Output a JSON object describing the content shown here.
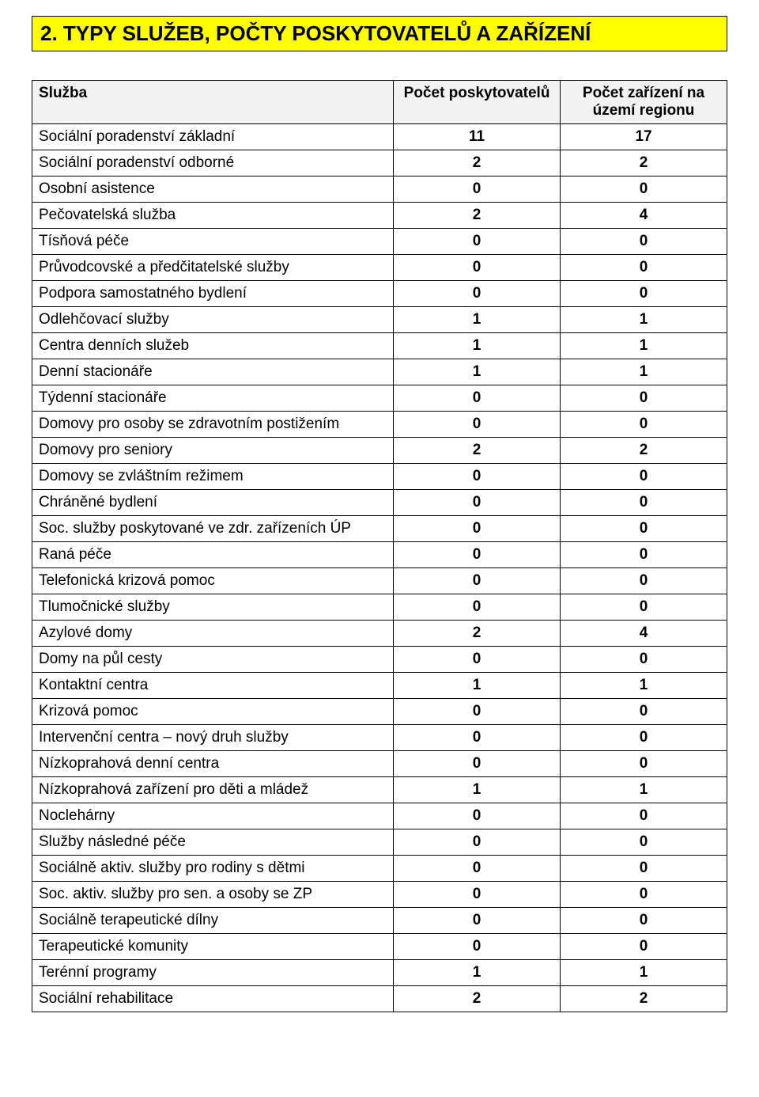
{
  "heading": "2. TYPY SLUŽEB, POČTY POSKYTOVATELŮ A ZAŘÍZENÍ",
  "colors": {
    "heading_bg": "#ffff00",
    "table_header_bg": "#f2f2f2",
    "border": "#000000",
    "text": "#000000",
    "background": "#ffffff"
  },
  "fonts": {
    "heading_size_pt": 20,
    "body_size_pt": 14,
    "family": "Arial"
  },
  "table": {
    "columns": [
      "Služba",
      "Počet poskytovatelů",
      "Počet zařízení na území regionu"
    ],
    "column_widths_pct": [
      52,
      24,
      24
    ],
    "rows": [
      {
        "label": "Sociální poradenství  základní",
        "providers": "11",
        "facilities": "17"
      },
      {
        "label": "Sociální poradenství  odborné",
        "providers": "2",
        "facilities": "2"
      },
      {
        "label": "Osobní asistence",
        "providers": "0",
        "facilities": "0"
      },
      {
        "label": "Pečovatelská služba",
        "providers": "2",
        "facilities": "4"
      },
      {
        "label": "Tísňová péče",
        "providers": "0",
        "facilities": "0"
      },
      {
        "label": "Průvodcovské a předčitatelské služby",
        "providers": "0",
        "facilities": "0"
      },
      {
        "label": "Podpora samostatného bydlení",
        "providers": "0",
        "facilities": "0"
      },
      {
        "label": "Odlehčovací služby",
        "providers": "1",
        "facilities": "1"
      },
      {
        "label": "Centra denních služeb",
        "providers": "1",
        "facilities": "1"
      },
      {
        "label": "Denní stacionáře",
        "providers": "1",
        "facilities": "1"
      },
      {
        "label": "Týdenní stacionáře",
        "providers": "0",
        "facilities": "0"
      },
      {
        "label": "Domovy pro osoby se zdravotním postižením",
        "providers": "0",
        "facilities": "0"
      },
      {
        "label": "Domovy pro seniory",
        "providers": "2",
        "facilities": "2"
      },
      {
        "label": "Domovy se zvláštním režimem",
        "providers": "0",
        "facilities": "0"
      },
      {
        "label": "Chráněné bydlení",
        "providers": "0",
        "facilities": "0"
      },
      {
        "label": "Soc. služby poskytované ve zdr. zařízeních ÚP",
        "providers": "0",
        "facilities": "0"
      },
      {
        "label": "Raná péče",
        "providers": "0",
        "facilities": "0"
      },
      {
        "label": "Telefonická krizová pomoc",
        "providers": "0",
        "facilities": "0"
      },
      {
        "label": "Tlumočnické služby",
        "providers": "0",
        "facilities": "0"
      },
      {
        "label": "Azylové domy",
        "providers": "2",
        "facilities": "4"
      },
      {
        "label": "Domy na půl cesty",
        "providers": "0",
        "facilities": "0"
      },
      {
        "label": "Kontaktní centra",
        "providers": "1",
        "facilities": "1"
      },
      {
        "label": "Krizová pomoc",
        "providers": "0",
        "facilities": "0"
      },
      {
        "label": "Intervenční centra – nový druh služby",
        "providers": "0",
        "facilities": "0"
      },
      {
        "label": "Nízkoprahová denní centra",
        "providers": "0",
        "facilities": "0"
      },
      {
        "label": "Nízkoprahová zařízení pro děti a mládež",
        "providers": "1",
        "facilities": "1"
      },
      {
        "label": "Noclehárny",
        "providers": "0",
        "facilities": "0"
      },
      {
        "label": "Služby následné péče",
        "providers": "0",
        "facilities": "0"
      },
      {
        "label": "Sociálně aktiv. služby pro rodiny s dětmi",
        "providers": "0",
        "facilities": "0"
      },
      {
        "label": "Soc. aktiv. služby pro sen. a osoby se ZP",
        "providers": "0",
        "facilities": "0"
      },
      {
        "label": "Sociálně terapeutické dílny",
        "providers": "0",
        "facilities": "0"
      },
      {
        "label": "Terapeutické komunity",
        "providers": "0",
        "facilities": "0"
      },
      {
        "label": "Terénní programy",
        "providers": "1",
        "facilities": "1"
      },
      {
        "label": "Sociální rehabilitace",
        "providers": "2",
        "facilities": "2"
      }
    ]
  }
}
